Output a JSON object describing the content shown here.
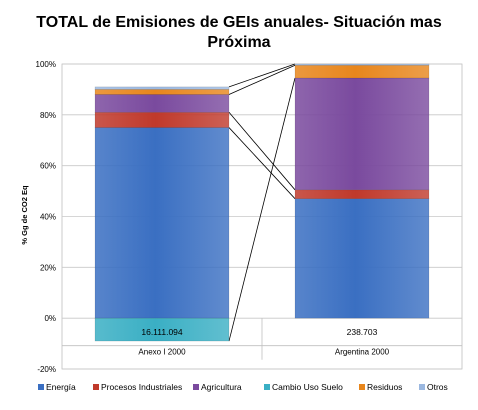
{
  "chart_data": {
    "type": "bar",
    "stacked": true,
    "title_line1": "TOTAL de Emisiones de GEIs anuales- Situación mas",
    "title_line2": "Próxima",
    "ylabel": "% Gg de CO2 Eq",
    "ylim": [
      -20,
      100
    ],
    "yticks": [
      "-20%",
      "0%",
      "20%",
      "40%",
      "60%",
      "80%",
      "100%"
    ],
    "ytick_values": [
      -20,
      0,
      20,
      40,
      60,
      80,
      100
    ],
    "grid": true,
    "legend_position": "bottom",
    "categories": [
      "Anexo I 2000",
      "Argentina 2000"
    ],
    "table_values": [
      "16.111.094",
      "238.703"
    ],
    "series": [
      {
        "name": "Energía",
        "color": "#3a6fc2",
        "values": [
          75,
          47
        ]
      },
      {
        "name": "Procesos Industriales",
        "color": "#c0392b",
        "values": [
          6,
          3.5
        ]
      },
      {
        "name": "Agricultura",
        "color": "#7a4a9e",
        "values": [
          7,
          44
        ]
      },
      {
        "name": "Cambio Uso Suelo",
        "color": "#3aafc4",
        "values": [
          -9,
          0
        ]
      },
      {
        "name": "Residuos",
        "color": "#e8861c",
        "values": [
          2,
          5
        ]
      },
      {
        "name": "Otros",
        "color": "#9bb8e0",
        "values": [
          1,
          0.5
        ]
      }
    ]
  }
}
